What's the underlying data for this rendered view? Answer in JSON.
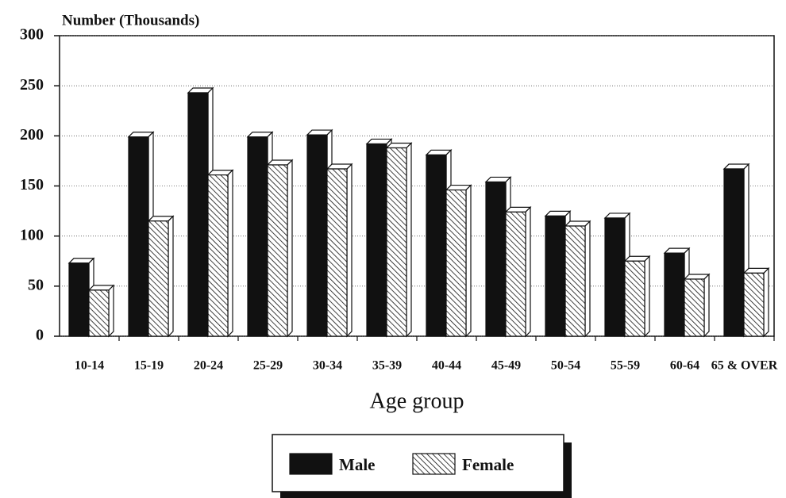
{
  "chart_data": {
    "type": "bar",
    "y_label": "Number (Thousands)",
    "x_label": "Age group",
    "categories": [
      "10-14",
      "15-19",
      "20-24",
      "25-29",
      "30-34",
      "35-39",
      "40-44",
      "45-49",
      "50-54",
      "55-59",
      "60-64",
      "65 & OVER"
    ],
    "series": [
      {
        "name": "Male",
        "color": "#111111",
        "values": [
          73,
          199,
          243,
          199,
          201,
          192,
          181,
          154,
          120,
          118,
          83,
          167
        ]
      },
      {
        "name": "Female",
        "color": "#ffffff",
        "hatch": true,
        "values": [
          46,
          115,
          161,
          171,
          167,
          188,
          146,
          124,
          110,
          75,
          57,
          63
        ]
      }
    ],
    "ylim": [
      0,
      300
    ],
    "yticks": [
      0,
      50,
      100,
      150,
      200,
      250,
      300
    ],
    "grid": true
  }
}
